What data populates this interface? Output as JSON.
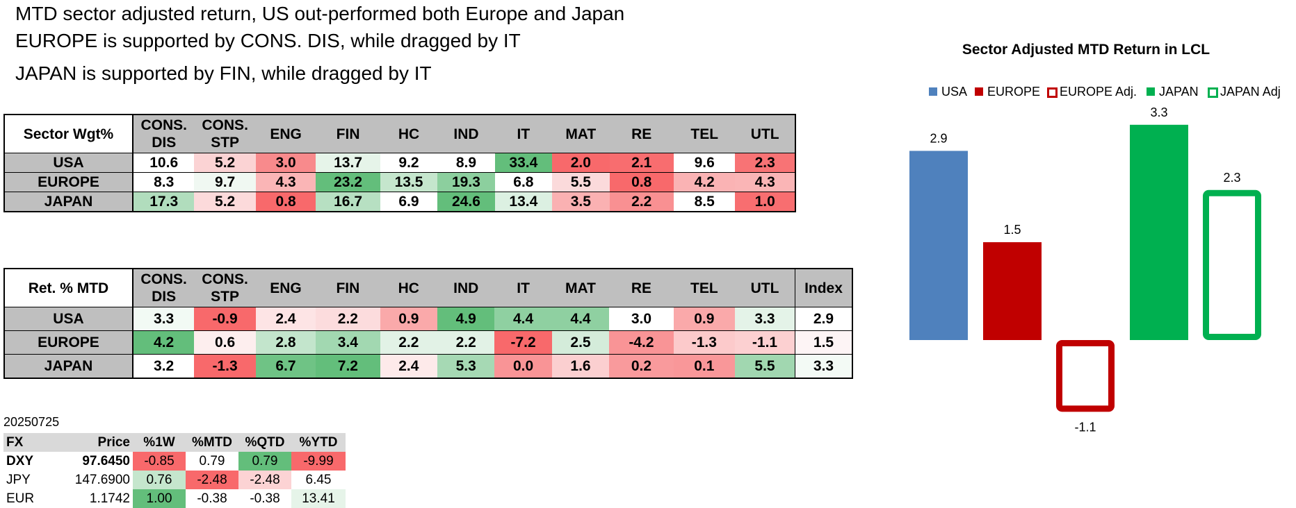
{
  "headlines": [
    "MTD sector adjusted return, US out-performed both Europe and Japan",
    "EUROPE is supported by CONS. DIS, while dragged by IT",
    "JAPAN is supported by FIN, while dragged by IT"
  ],
  "sector_table": {
    "corner": "Sector Wgt%",
    "columns": [
      "CONS. DIS",
      "CONS. STP",
      "ENG",
      "FIN",
      "HC",
      "IND",
      "IT",
      "MAT",
      "RE",
      "TEL",
      "UTL"
    ],
    "rows": [
      {
        "label": "USA",
        "cells": [
          {
            "v": "10.6",
            "bg": "#ffffff"
          },
          {
            "v": "5.2",
            "bg": "#fbd3d4"
          },
          {
            "v": "3.0",
            "bg": "#f88a8c"
          },
          {
            "v": "13.7",
            "bg": "#e6f4e9"
          },
          {
            "v": "9.2",
            "bg": "#ffffff"
          },
          {
            "v": "8.9",
            "bg": "#ffffff"
          },
          {
            "v": "33.4",
            "bg": "#63be7b"
          },
          {
            "v": "2.0",
            "bg": "#f8696b"
          },
          {
            "v": "2.1",
            "bg": "#f86d6f"
          },
          {
            "v": "9.6",
            "bg": "#ffffff"
          },
          {
            "v": "2.3",
            "bg": "#f87375"
          }
        ]
      },
      {
        "label": "EUROPE",
        "cells": [
          {
            "v": "8.3",
            "bg": "#ffffff"
          },
          {
            "v": "9.7",
            "bg": "#f0f8f2"
          },
          {
            "v": "4.3",
            "bg": "#fab5b6"
          },
          {
            "v": "23.2",
            "bg": "#63be7b"
          },
          {
            "v": "13.5",
            "bg": "#c5e6cd"
          },
          {
            "v": "19.3",
            "bg": "#8ccf9e"
          },
          {
            "v": "6.8",
            "bg": "#ffffff"
          },
          {
            "v": "5.5",
            "bg": "#fbdadb"
          },
          {
            "v": "0.8",
            "bg": "#f8696b"
          },
          {
            "v": "4.2",
            "bg": "#fab3b4"
          },
          {
            "v": "4.3",
            "bg": "#fab5b6"
          }
        ]
      },
      {
        "label": "JAPAN",
        "cells": [
          {
            "v": "17.3",
            "bg": "#b1ddbd"
          },
          {
            "v": "5.2",
            "bg": "#fcdadb"
          },
          {
            "v": "0.8",
            "bg": "#f8696b"
          },
          {
            "v": "16.7",
            "bg": "#b7e0c2"
          },
          {
            "v": "6.9",
            "bg": "#ffffff"
          },
          {
            "v": "24.6",
            "bg": "#63be7b"
          },
          {
            "v": "13.4",
            "bg": "#dcf0e2"
          },
          {
            "v": "3.5",
            "bg": "#fab1b2"
          },
          {
            "v": "2.2",
            "bg": "#f99092"
          },
          {
            "v": "8.5",
            "bg": "#ffffff"
          },
          {
            "v": "1.0",
            "bg": "#f86e70"
          }
        ]
      }
    ]
  },
  "return_table": {
    "corner": "Ret. % MTD",
    "columns": [
      "CONS. DIS",
      "CONS. STP",
      "ENG",
      "FIN",
      "HC",
      "IND",
      "IT",
      "MAT",
      "RE",
      "TEL",
      "UTL",
      "Index"
    ],
    "rows": [
      {
        "label": "USA",
        "cells": [
          {
            "v": "3.3",
            "bg": "#f2faf4"
          },
          {
            "v": "-0.9",
            "bg": "#f8696b"
          },
          {
            "v": "2.4",
            "bg": "#fde4e5"
          },
          {
            "v": "2.2",
            "bg": "#fcdcdd"
          },
          {
            "v": "0.9",
            "bg": "#faa9aa"
          },
          {
            "v": "4.9",
            "bg": "#63be7b"
          },
          {
            "v": "4.4",
            "bg": "#8fd0a1"
          },
          {
            "v": "4.4",
            "bg": "#8fd0a1"
          },
          {
            "v": "3.0",
            "bg": "#ffffff"
          },
          {
            "v": "0.9",
            "bg": "#faa9aa"
          },
          {
            "v": "3.3",
            "bg": "#e4f3e8"
          },
          {
            "v": "2.9",
            "bg": "#ffffff"
          }
        ]
      },
      {
        "label": "EUROPE",
        "cells": [
          {
            "v": "4.2",
            "bg": "#63be7b"
          },
          {
            "v": "0.6",
            "bg": "#fdeeee"
          },
          {
            "v": "2.8",
            "bg": "#c3e5cc"
          },
          {
            "v": "3.4",
            "bg": "#a2d8b1"
          },
          {
            "v": "2.2",
            "bg": "#e2f2e6"
          },
          {
            "v": "2.2",
            "bg": "#e2f2e6"
          },
          {
            "v": "-7.2",
            "bg": "#f8696b"
          },
          {
            "v": "2.5",
            "bg": "#d4ecda"
          },
          {
            "v": "-4.2",
            "bg": "#f99496"
          },
          {
            "v": "-1.3",
            "bg": "#fccacb"
          },
          {
            "v": "-1.1",
            "bg": "#fcd0d1"
          },
          {
            "v": "1.5",
            "bg": "#fdf4f5"
          }
        ]
      },
      {
        "label": "JAPAN",
        "cells": [
          {
            "v": "3.2",
            "bg": "#ffffff"
          },
          {
            "v": "-1.3",
            "bg": "#f8696b"
          },
          {
            "v": "6.7",
            "bg": "#6fc385"
          },
          {
            "v": "7.2",
            "bg": "#63be7b"
          },
          {
            "v": "2.4",
            "bg": "#fdeaea"
          },
          {
            "v": "5.3",
            "bg": "#a6d9b4"
          },
          {
            "v": "0.0",
            "bg": "#f99496"
          },
          {
            "v": "1.6",
            "bg": "#fbcfd0"
          },
          {
            "v": "0.2",
            "bg": "#f99a9c"
          },
          {
            "v": "0.1",
            "bg": "#f99799"
          },
          {
            "v": "5.5",
            "bg": "#a1d7b0"
          },
          {
            "v": "3.3",
            "bg": "#f3faf5"
          }
        ]
      }
    ]
  },
  "fx": {
    "date": "20250725",
    "headers": [
      "FX",
      "Price",
      "%1W",
      "%MTD",
      "%QTD",
      "%YTD"
    ],
    "rows": [
      {
        "name": "DXY",
        "price": "97.6450",
        "bold": true,
        "cells": [
          {
            "v": "-0.85",
            "bg": "#f8696b"
          },
          {
            "v": "0.79",
            "bg": "#ffffff"
          },
          {
            "v": "0.79",
            "bg": "#63be7b"
          },
          {
            "v": "-9.99",
            "bg": "#f8696b"
          }
        ]
      },
      {
        "name": "JPY",
        "price": "147.6900",
        "bold": false,
        "cells": [
          {
            "v": "0.76",
            "bg": "#c5e6cd"
          },
          {
            "v": "-2.48",
            "bg": "#f8696b"
          },
          {
            "v": "-2.48",
            "bg": "#fcd3d4"
          },
          {
            "v": "6.45",
            "bg": "#ffffff"
          }
        ]
      },
      {
        "name": "EUR",
        "price": "1.1742",
        "bold": false,
        "cells": [
          {
            "v": "1.00",
            "bg": "#63be7b"
          },
          {
            "v": "-0.38",
            "bg": "#ffffff"
          },
          {
            "v": "-0.38",
            "bg": "#ffffff"
          },
          {
            "v": "13.41",
            "bg": "#e6f4e9"
          }
        ]
      }
    ]
  },
  "chart_data": {
    "type": "bar",
    "title": "Sector Adjusted MTD Return in LCL",
    "legend": [
      {
        "name": "USA",
        "color": "#4f81bd",
        "style": "fill"
      },
      {
        "name": "EUROPE",
        "color": "#c00000",
        "style": "fill"
      },
      {
        "name": "EUROPE Adj.",
        "color": "#c00000",
        "style": "outline"
      },
      {
        "name": "JAPAN",
        "color": "#00b050",
        "style": "fill"
      },
      {
        "name": "JAPAN Adj",
        "color": "#00b050",
        "style": "outline"
      }
    ],
    "legend_position": "top",
    "categories": [
      "USA",
      "EUROPE",
      "EUROPE Adj.",
      "JAPAN",
      "JAPAN Adj"
    ],
    "values": [
      2.9,
      1.5,
      -1.1,
      3.3,
      2.3
    ],
    "data_labels": [
      "2.9",
      "1.5",
      "-1.1",
      "3.3",
      "2.3"
    ],
    "axis": {
      "x_visible": false,
      "y_visible": false
    },
    "grid": false
  }
}
